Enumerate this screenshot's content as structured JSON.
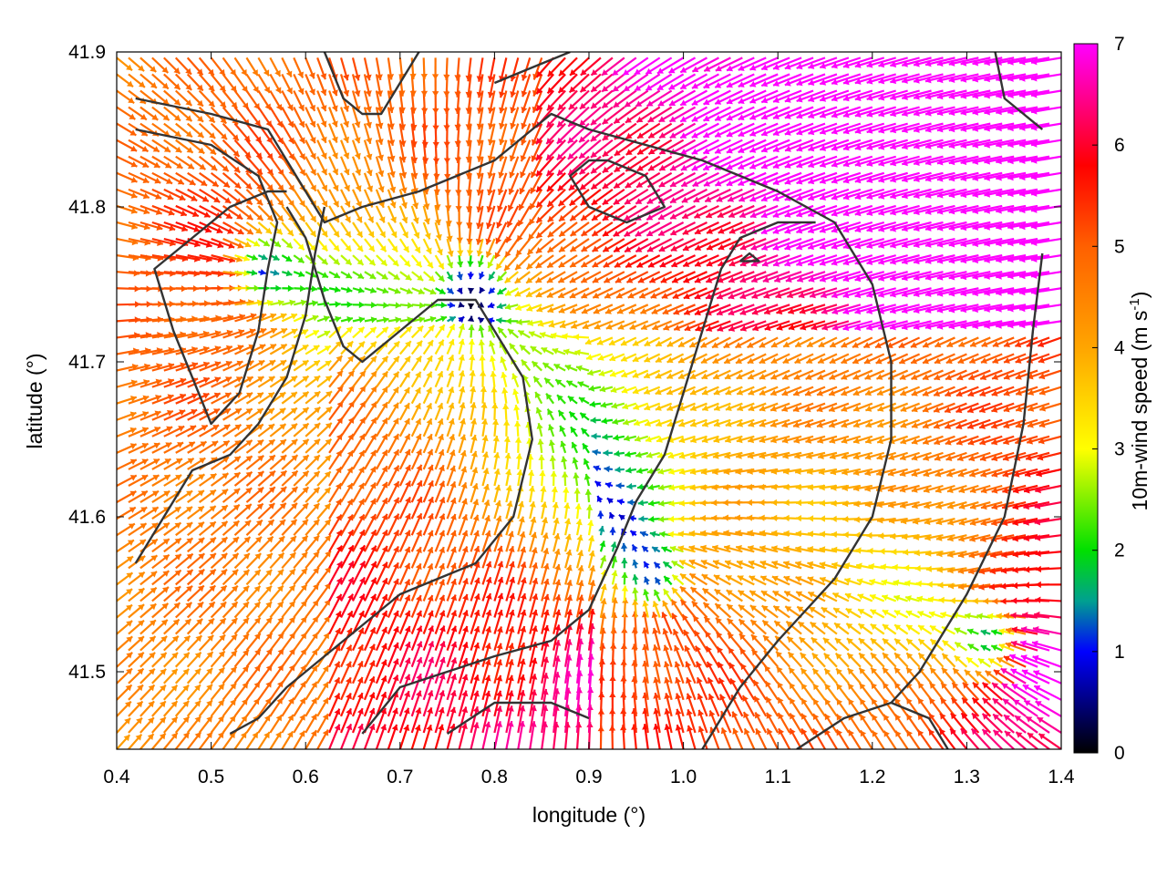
{
  "chart_data": {
    "type": "vector-field",
    "xlabel": "longitude (°)",
    "ylabel": "latitude (°)",
    "xlim": [
      0.4,
      1.4
    ],
    "ylim": [
      41.45,
      41.9
    ],
    "xticks": [
      "0.4",
      "0.5",
      "0.6",
      "0.7",
      "0.8",
      "0.9",
      "1.0",
      "1.1",
      "1.2",
      "1.3",
      "1.4"
    ],
    "xtick_values": [
      0.4,
      0.5,
      0.6,
      0.7,
      0.8,
      0.9,
      1.0,
      1.1,
      1.2,
      1.3,
      1.4
    ],
    "yticks": [
      "41.5",
      "41.6",
      "41.7",
      "41.8",
      "41.9"
    ],
    "ytick_values": [
      41.5,
      41.6,
      41.7,
      41.8,
      41.9
    ],
    "grid": false,
    "colorbar": {
      "label_main": "10m-wind speed (m s",
      "label_sup": "-1",
      "label_end": ")",
      "range": [
        0,
        7
      ],
      "ticks": [
        "0",
        "1",
        "2",
        "3",
        "4",
        "5",
        "6",
        "7"
      ],
      "tick_values": [
        0,
        1,
        2,
        3,
        4,
        5,
        6,
        7
      ],
      "stops": [
        {
          "v": 0.0,
          "color": "#000000"
        },
        {
          "v": 1.0,
          "color": "#0000ff"
        },
        {
          "v": 1.5,
          "color": "#00a090"
        },
        {
          "v": 2.0,
          "color": "#00e000"
        },
        {
          "v": 3.0,
          "color": "#ffff00"
        },
        {
          "v": 4.0,
          "color": "#ffa500"
        },
        {
          "v": 5.0,
          "color": "#ff6000"
        },
        {
          "v": 5.8,
          "color": "#ff0000"
        },
        {
          "v": 7.0,
          "color": "#ff00ff"
        }
      ]
    },
    "field": {
      "grid_spacing": 0.0125,
      "centers": [
        {
          "lon": 0.78,
          "lat": 41.75,
          "w": 1.4
        },
        {
          "lon": 0.55,
          "lat": 41.76,
          "w": 1.0
        },
        {
          "lon": 0.97,
          "lat": 41.56,
          "w": 1.2
        },
        {
          "lon": 1.33,
          "lat": 41.52,
          "w": 1.1
        }
      ],
      "background_wind": {
        "u": -0.8,
        "v": 0.4
      }
    },
    "contours": [
      [
        [
          0.42,
          41.87
        ],
        [
          0.5,
          41.86
        ],
        [
          0.56,
          41.85
        ],
        [
          0.58,
          41.83
        ],
        [
          0.6,
          41.81
        ],
        [
          0.62,
          41.79
        ],
        [
          0.66,
          41.8
        ],
        [
          0.72,
          41.81
        ],
        [
          0.76,
          41.82
        ],
        [
          0.8,
          41.83
        ],
        [
          0.82,
          41.84
        ],
        [
          0.84,
          41.85
        ],
        [
          0.86,
          41.86
        ],
        [
          0.9,
          41.85
        ],
        [
          0.96,
          41.84
        ],
        [
          1.02,
          41.83
        ],
        [
          1.1,
          41.81
        ],
        [
          1.16,
          41.79
        ],
        [
          1.2,
          41.75
        ],
        [
          1.22,
          41.7
        ],
        [
          1.22,
          41.65
        ],
        [
          1.2,
          41.6
        ],
        [
          1.16,
          41.56
        ],
        [
          1.1,
          41.52
        ],
        [
          1.06,
          41.49
        ],
        [
          1.02,
          41.45
        ]
      ],
      [
        [
          0.42,
          41.85
        ],
        [
          0.5,
          41.84
        ],
        [
          0.55,
          41.82
        ],
        [
          0.57,
          41.79
        ],
        [
          0.56,
          41.76
        ],
        [
          0.55,
          41.72
        ],
        [
          0.53,
          41.68
        ],
        [
          0.5,
          41.66
        ],
        [
          0.48,
          41.69
        ],
        [
          0.46,
          41.72
        ],
        [
          0.44,
          41.76
        ],
        [
          0.48,
          41.78
        ],
        [
          0.52,
          41.8
        ],
        [
          0.56,
          41.81
        ],
        [
          0.58,
          41.81
        ]
      ],
      [
        [
          0.58,
          41.8
        ],
        [
          0.6,
          41.78
        ],
        [
          0.62,
          41.74
        ],
        [
          0.64,
          41.71
        ],
        [
          0.66,
          41.7
        ],
        [
          0.7,
          41.72
        ],
        [
          0.74,
          41.74
        ],
        [
          0.78,
          41.74
        ],
        [
          0.8,
          41.72
        ],
        [
          0.83,
          41.69
        ],
        [
          0.84,
          41.65
        ],
        [
          0.82,
          41.6
        ],
        [
          0.78,
          41.57
        ],
        [
          0.74,
          41.56
        ],
        [
          0.7,
          41.55
        ],
        [
          0.66,
          41.53
        ],
        [
          0.62,
          41.51
        ],
        [
          0.58,
          41.49
        ],
        [
          0.55,
          41.47
        ],
        [
          0.52,
          41.46
        ]
      ],
      [
        [
          0.42,
          41.57
        ],
        [
          0.45,
          41.6
        ],
        [
          0.48,
          41.63
        ],
        [
          0.52,
          41.64
        ],
        [
          0.55,
          41.66
        ],
        [
          0.58,
          41.69
        ],
        [
          0.6,
          41.73
        ],
        [
          0.61,
          41.77
        ],
        [
          0.62,
          41.8
        ]
      ],
      [
        [
          0.66,
          41.46
        ],
        [
          0.7,
          41.49
        ],
        [
          0.75,
          41.5
        ],
        [
          0.8,
          41.51
        ],
        [
          0.86,
          41.52
        ],
        [
          0.9,
          41.54
        ],
        [
          0.93,
          41.58
        ],
        [
          0.95,
          41.61
        ],
        [
          0.98,
          41.64
        ],
        [
          1.0,
          41.68
        ],
        [
          1.02,
          41.72
        ],
        [
          1.04,
          41.76
        ],
        [
          1.06,
          41.78
        ],
        [
          1.1,
          41.79
        ],
        [
          1.14,
          41.79
        ]
      ],
      [
        [
          0.75,
          41.46
        ],
        [
          0.8,
          41.48
        ],
        [
          0.86,
          41.48
        ],
        [
          0.9,
          41.47
        ]
      ],
      [
        [
          1.12,
          41.45
        ],
        [
          1.17,
          41.47
        ],
        [
          1.22,
          41.48
        ],
        [
          1.26,
          41.47
        ],
        [
          1.28,
          41.45
        ]
      ],
      [
        [
          1.22,
          41.48
        ],
        [
          1.25,
          41.5
        ],
        [
          1.27,
          41.52
        ],
        [
          1.3,
          41.55
        ],
        [
          1.34,
          41.6
        ],
        [
          1.36,
          41.66
        ],
        [
          1.37,
          41.72
        ],
        [
          1.38,
          41.77
        ]
      ],
      [
        [
          0.92,
          41.83
        ],
        [
          0.96,
          41.82
        ],
        [
          0.98,
          41.8
        ],
        [
          0.94,
          41.79
        ],
        [
          0.9,
          41.8
        ],
        [
          0.88,
          41.82
        ],
        [
          0.9,
          41.83
        ],
        [
          0.92,
          41.83
        ]
      ],
      [
        [
          1.06,
          41.765
        ],
        [
          1.08,
          41.765
        ],
        [
          1.07,
          41.77
        ],
        [
          1.06,
          41.765
        ]
      ],
      [
        [
          1.33,
          41.9
        ],
        [
          1.34,
          41.87
        ],
        [
          1.36,
          41.86
        ],
        [
          1.38,
          41.85
        ]
      ],
      [
        [
          0.62,
          41.9
        ],
        [
          0.64,
          41.87
        ],
        [
          0.66,
          41.86
        ],
        [
          0.68,
          41.86
        ],
        [
          0.7,
          41.88
        ],
        [
          0.72,
          41.9
        ]
      ],
      [
        [
          0.8,
          41.88
        ],
        [
          0.84,
          41.89
        ],
        [
          0.88,
          41.9
        ]
      ]
    ]
  }
}
